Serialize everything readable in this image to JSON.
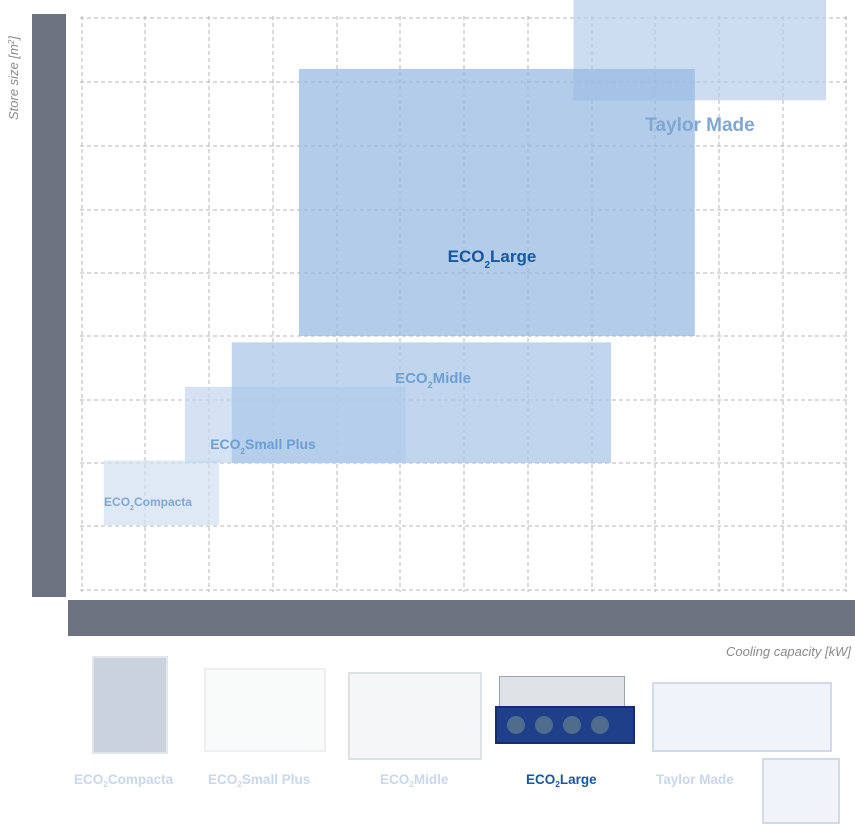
{
  "chart_data": {
    "type": "range-boxes",
    "xlabel": "Cooling capacity [kW]",
    "ylabel_main": "Store size [m",
    "ylabel_sup": "2",
    "ylabel_end": "]",
    "x_ticks": [
      "0",
      "20",
      "40",
      "60",
      "80",
      "100",
      "125",
      "140",
      "150",
      "175",
      "200",
      "<450"
    ],
    "y_ticks": [
      "0",
      "1000",
      "2000",
      "4000",
      "8000"
    ],
    "y_tick_levels": [
      0,
      1,
      2,
      3,
      4
    ],
    "series": [
      {
        "name": "Taylor Made",
        "sub": "",
        "suffix": "",
        "x_from": 145,
        "x_to": 475,
        "y_from": 3.87,
        "y_to": 4.78,
        "color": "#b9d0ea",
        "label_color": "#7fa7d3",
        "label_size": 19
      },
      {
        "name": "ECO",
        "sub": "2",
        "suffix": "Large",
        "x_from": 65,
        "x_to": 185,
        "y_from": 2.0,
        "y_to": 4.12,
        "color": "#94b9e2",
        "label_color": "#17579e",
        "label_size": 17
      },
      {
        "name": "ECO",
        "sub": "2",
        "suffix": "Midle",
        "x_from": 44,
        "x_to": 152,
        "y_from": 1.95,
        "y_to": 1.0,
        "color": "#a7c6e7",
        "label_color": "#6f9fd2",
        "label_size": 15
      },
      {
        "name": "ECO",
        "sub": "2",
        "suffix": "Small Plus",
        "x_from": 29,
        "x_to": 97,
        "y_from": 1.0,
        "y_to": 1.6,
        "color": "#c3d7ee",
        "label_color": "#6f9fd2",
        "label_size": 14
      },
      {
        "name": "ECO",
        "sub": "2",
        "suffix": "Compacta",
        "x_from": 5,
        "x_to": 40,
        "y_from": 0.5,
        "y_to": 1.02,
        "color": "#d2e1f2",
        "label_color": "#7fa7d3",
        "label_size": 12
      }
    ],
    "grid": true
  },
  "products": [
    {
      "name": "ECO",
      "sub": "2",
      "suffix": "Compacta",
      "highlight": false
    },
    {
      "name": "ECO",
      "sub": "2",
      "suffix": "Small Plus",
      "highlight": false
    },
    {
      "name": "ECO",
      "sub": "2",
      "suffix": "Midle",
      "highlight": false
    },
    {
      "name": "ECO",
      "sub": "2",
      "suffix": "Large",
      "highlight": true
    },
    {
      "name": "Taylor Made",
      "sub": "",
      "suffix": "",
      "highlight": false
    }
  ],
  "colors": {
    "axis_bar": "#6d7280",
    "highlight_text": "#17579e",
    "faded_text": "#c9d7ea",
    "grid": "#b5b5b5"
  }
}
